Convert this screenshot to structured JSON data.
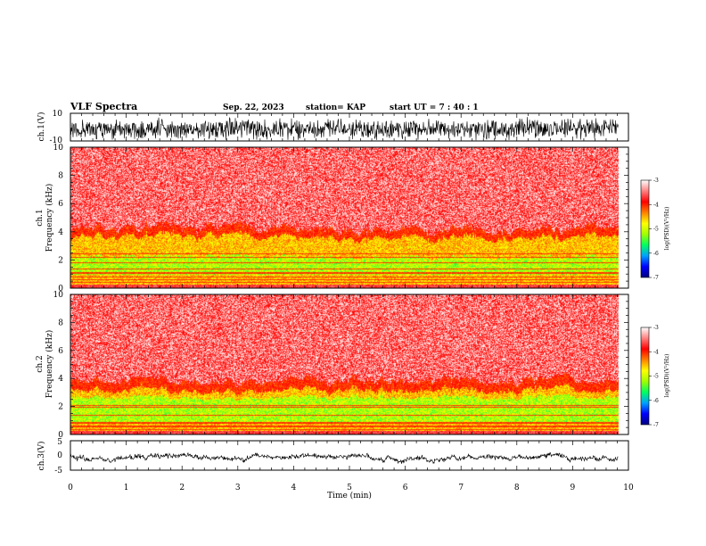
{
  "header": {
    "title": "VLF Spectra",
    "date": "Sep. 22, 2023",
    "station": "station= KAP",
    "start": "start  UT  =   7 : 40 : 1"
  },
  "chart_data": {
    "type": "heatmap",
    "time_axis": {
      "label": "Time  (min)",
      "range": [
        0,
        10
      ],
      "ticks": [
        "0",
        "1",
        "2",
        "3",
        "4",
        "5",
        "6",
        "7",
        "8",
        "9",
        "10"
      ],
      "data_end": 9.82
    },
    "panels": [
      {
        "id": "ch1-waveform",
        "kind": "line",
        "ylabel": "ch.1(V)",
        "ylim": [
          -10,
          10
        ],
        "yticks": [
          "10",
          "-10"
        ],
        "trace": {
          "mean": -1.5,
          "noise_amplitude": 8.5,
          "color": "#000000"
        }
      },
      {
        "id": "ch1-spectrogram",
        "kind": "heatmap",
        "ylabel_line1": "ch.1",
        "ylabel_line2": "Frequency  (kHz)",
        "ylim": [
          0,
          10
        ],
        "yticks": [
          "0",
          "2",
          "4",
          "6",
          "8",
          "10"
        ],
        "profile_khz": {
          "green_band": [
            0.9,
            2.2
          ],
          "yellow_top": 3.6,
          "red_top": 4.2,
          "noise_lines": [
            0.4,
            0.55,
            0.75,
            1.05,
            1.35,
            1.8,
            2.15,
            2.4
          ]
        }
      },
      {
        "id": "ch2-spectrogram",
        "kind": "heatmap",
        "ylabel_line1": "ch.2",
        "ylabel_line2": "Frequency  (kHz)",
        "ylim": [
          0,
          10
        ],
        "yticks": [
          "0",
          "2",
          "4",
          "6",
          "8",
          "10"
        ],
        "profile_khz": {
          "green_band": [
            0.8,
            2.6
          ],
          "yellow_top": 3.1,
          "red_top": 3.8,
          "noise_lines": [
            0.3,
            0.55,
            0.8,
            1.35,
            1.9,
            2.05
          ]
        }
      },
      {
        "id": "ch3-waveform",
        "kind": "line",
        "ylabel": "ch.3(V)",
        "ylim": [
          -5,
          5
        ],
        "yticks": [
          "5",
          "0",
          "-5"
        ],
        "trace": {
          "mean": -0.8,
          "noise_amplitude": 0.8,
          "color": "#000000"
        }
      }
    ],
    "colorbar": {
      "label": "log(PSD)(V²/Hz)",
      "range": [
        -7,
        -3
      ],
      "ticks": [
        "-3",
        "-4",
        "-5",
        "-6",
        "-7"
      ],
      "colors": [
        "#000080",
        "#0000ff",
        "#00a0ff",
        "#00ff60",
        "#a0ff00",
        "#ffff00",
        "#ff8000",
        "#ff0000",
        "#ff8080",
        "#ffffff"
      ]
    }
  }
}
